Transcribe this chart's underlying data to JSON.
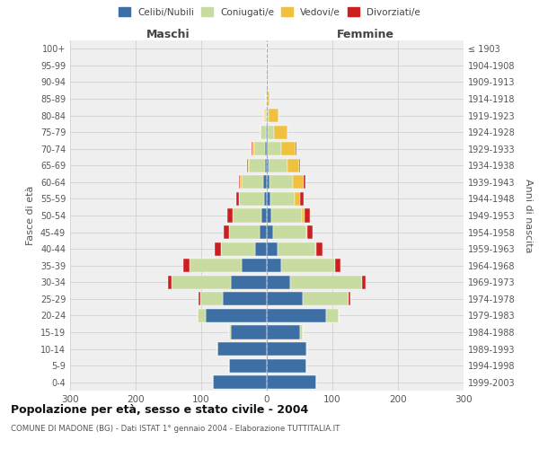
{
  "age_groups": [
    "0-4",
    "5-9",
    "10-14",
    "15-19",
    "20-24",
    "25-29",
    "30-34",
    "35-39",
    "40-44",
    "45-49",
    "50-54",
    "55-59",
    "60-64",
    "65-69",
    "70-74",
    "75-79",
    "80-84",
    "85-89",
    "90-94",
    "95-99",
    "100+"
  ],
  "birth_years": [
    "1999-2003",
    "1994-1998",
    "1989-1993",
    "1984-1988",
    "1979-1983",
    "1974-1978",
    "1969-1973",
    "1964-1968",
    "1959-1963",
    "1954-1958",
    "1949-1953",
    "1944-1948",
    "1939-1943",
    "1934-1938",
    "1929-1933",
    "1924-1928",
    "1919-1923",
    "1914-1918",
    "1909-1913",
    "1904-1908",
    "≤ 1903"
  ],
  "maschi": {
    "celibi": [
      82,
      58,
      75,
      55,
      93,
      67,
      55,
      38,
      18,
      11,
      8,
      4,
      5,
      3,
      3,
      1,
      0,
      0,
      0,
      0,
      0
    ],
    "coniugati": [
      0,
      0,
      1,
      3,
      12,
      35,
      90,
      80,
      52,
      47,
      44,
      38,
      34,
      24,
      16,
      8,
      3,
      1,
      0,
      0,
      0
    ],
    "vedovi": [
      0,
      0,
      0,
      0,
      0,
      0,
      0,
      0,
      0,
      0,
      0,
      1,
      2,
      2,
      3,
      1,
      1,
      0,
      0,
      0,
      0
    ],
    "divorziati": [
      0,
      0,
      0,
      0,
      0,
      2,
      5,
      10,
      9,
      8,
      8,
      4,
      2,
      1,
      1,
      0,
      0,
      0,
      0,
      0,
      0
    ]
  },
  "femmine": {
    "nubili": [
      75,
      60,
      60,
      50,
      90,
      55,
      35,
      22,
      16,
      10,
      7,
      5,
      4,
      3,
      2,
      1,
      0,
      0,
      0,
      0,
      0
    ],
    "coniugate": [
      0,
      0,
      2,
      5,
      20,
      70,
      110,
      82,
      58,
      50,
      46,
      38,
      36,
      28,
      20,
      10,
      3,
      1,
      0,
      0,
      0
    ],
    "vedove": [
      0,
      0,
      0,
      0,
      0,
      0,
      0,
      0,
      1,
      2,
      4,
      8,
      16,
      18,
      22,
      20,
      15,
      3,
      2,
      1,
      0
    ],
    "divorziate": [
      0,
      0,
      0,
      0,
      0,
      2,
      5,
      8,
      10,
      8,
      9,
      5,
      3,
      1,
      1,
      0,
      0,
      0,
      0,
      0,
      0
    ]
  },
  "colors": {
    "celibi": "#3d6fa5",
    "coniugati": "#c8dba0",
    "vedovi": "#f0c040",
    "divorziati": "#cc2020"
  },
  "xlim": 300,
  "title": "Popolazione per età, sesso e stato civile - 2004",
  "subtitle": "COMUNE DI MADONE (BG) - Dati ISTAT 1° gennaio 2004 - Elaborazione TUTTITALIA.IT",
  "ylabel": "Fasce di età",
  "ylabel_right": "Anni di nascita",
  "xlabel_maschi": "Maschi",
  "xlabel_femmine": "Femmine"
}
